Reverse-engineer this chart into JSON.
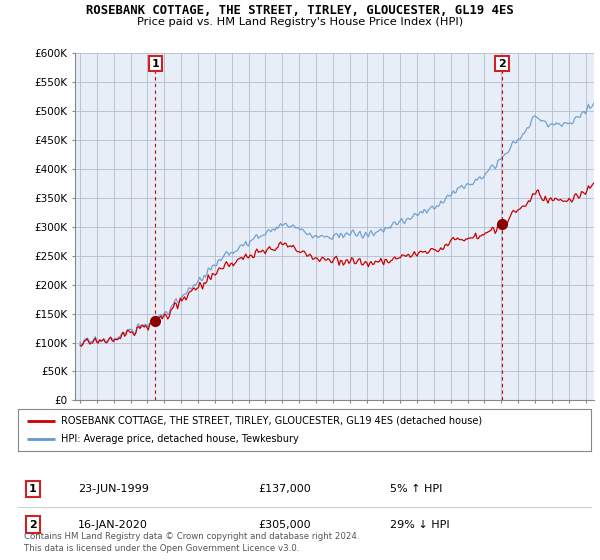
{
  "title": "ROSEBANK COTTAGE, THE STREET, TIRLEY, GLOUCESTER, GL19 4ES",
  "subtitle": "Price paid vs. HM Land Registry's House Price Index (HPI)",
  "ylabel_ticks": [
    "£0",
    "£50K",
    "£100K",
    "£150K",
    "£200K",
    "£250K",
    "£300K",
    "£350K",
    "£400K",
    "£450K",
    "£500K",
    "£550K",
    "£600K"
  ],
  "ytick_vals": [
    0,
    50000,
    100000,
    150000,
    200000,
    250000,
    300000,
    350000,
    400000,
    450000,
    500000,
    550000,
    600000
  ],
  "ylim": [
    0,
    600000
  ],
  "xlim_start": 1994.7,
  "xlim_end": 2025.5,
  "sale1_year": 1999.47,
  "sale1_price": 137000,
  "sale2_year": 2020.04,
  "sale2_price": 305000,
  "legend_line1": "ROSEBANK COTTAGE, THE STREET, TIRLEY, GLOUCESTER, GL19 4ES (detached house)",
  "legend_line2": "HPI: Average price, detached house, Tewkesbury",
  "footnote1": "Contains HM Land Registry data © Crown copyright and database right 2024.",
  "footnote2": "This data is licensed under the Open Government Licence v3.0.",
  "line_color_red": "#cc0000",
  "line_color_blue": "#6699cc",
  "box_color": "#cc2222",
  "bg_color": "#ffffff",
  "chart_bg": "#e8eef8",
  "grid_color": "#b0bcd0"
}
